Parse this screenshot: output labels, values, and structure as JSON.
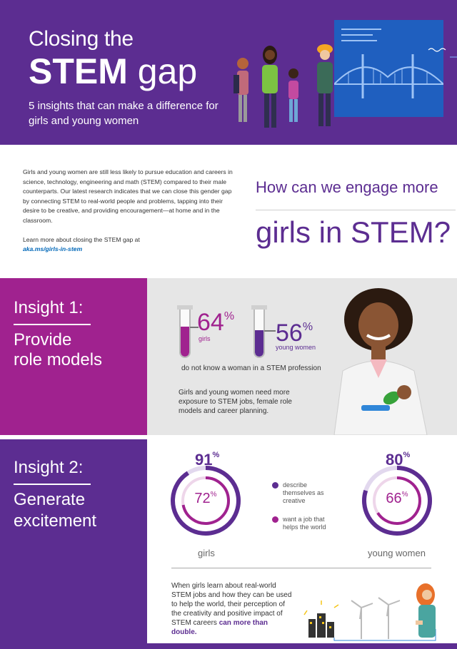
{
  "header": {
    "title_line1": "Closing the",
    "title_bold": "STEM",
    "title_light": " gap",
    "subtitle": "5 insights that can make a difference for girls and young women"
  },
  "intro": {
    "body": "Girls and young women are still less likely to pursue education and careers in science, technology, engineering and math (STEM) compared to their male counterparts. Our latest research indicates that we can close this gender gap by connecting STEM to real-world people and problems, tapping into their desire to be creative, and providing encouragement—at home and in the classroom.",
    "learn_more": "Learn more about closing the STEM gap at",
    "link": "aka.ms/girls-in-stem",
    "question_line1": "How can we engage more",
    "question_line2": "girls in STEM?"
  },
  "insight1": {
    "title": "Insight 1:",
    "subtitle_line1": "Provide",
    "subtitle_line2": "role models",
    "stat1_value": "64",
    "stat1_unit": "%",
    "stat1_label": "girls",
    "stat1_fraction": 0.64,
    "stat2_value": "56",
    "stat2_unit": "%",
    "stat2_label": "young women",
    "stat2_fraction": 0.56,
    "caption": "do not know a woman in a STEM profession",
    "body": "Girls and young women need more exposure to STEM jobs, female role models and career planning."
  },
  "insight2": {
    "title": "Insight 2:",
    "subtitle_line1": "Generate",
    "subtitle_line2": "excitement",
    "girls_outer_value": "91",
    "girls_inner_value": "72",
    "girls_outer_fraction": 0.91,
    "girls_inner_fraction": 0.72,
    "girls_label": "girls",
    "women_outer_value": "80",
    "women_inner_value": "66",
    "women_outer_fraction": 0.8,
    "women_inner_fraction": 0.66,
    "women_label": "young women",
    "unit": "%",
    "legend_outer": "describe themselves as creative",
    "legend_inner": "want a job that helps the world",
    "body_plain": "When girls learn about real-world STEM jobs and how they can be used to help the world, their perception of the creativity and positive impact of STEM careers ",
    "body_bold": "can more than double."
  },
  "colors": {
    "purple": "#5c2d91",
    "magenta": "#a0228f",
    "board_blue": "#1f5fbf",
    "grey_panel": "#e6e6e6",
    "link_blue": "#0067b8"
  }
}
